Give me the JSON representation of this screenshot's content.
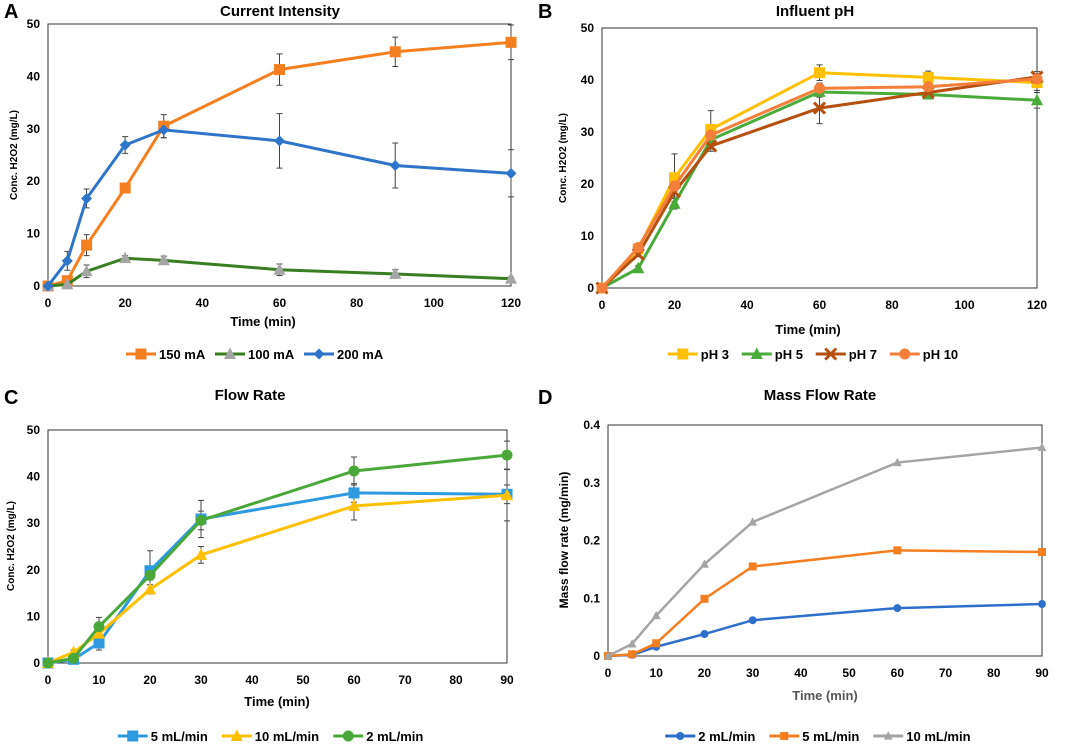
{
  "chart_data": [
    {
      "panel_label": "A",
      "type": "line",
      "title": "Current Intensity",
      "xlabel": "Time (min)",
      "ylabel": "Conc. H2O2 (mg/L)",
      "xlim": [
        0,
        120
      ],
      "ylim": [
        0,
        50
      ],
      "xticks": [
        0,
        20,
        40,
        60,
        80,
        100,
        120
      ],
      "yticks": [
        0,
        10,
        20,
        30,
        40,
        50
      ],
      "legend": "bottom",
      "x": [
        0,
        5,
        10,
        20,
        30,
        60,
        90,
        120
      ],
      "series": [
        {
          "name": "150 mA",
          "color": "#f47f20",
          "marker": "square",
          "values": [
            0,
            1,
            7.8,
            18.7,
            30.5,
            41.3,
            44.7,
            46.5
          ],
          "errors": [
            0,
            0.5,
            2,
            0,
            2.2,
            3,
            2.8,
            3.3
          ]
        },
        {
          "name": "100 mA",
          "color": "#3a7d22",
          "marker": "triangle",
          "marker_color": "#a5a5a5",
          "values": [
            0,
            0.3,
            2.8,
            5.3,
            4.9,
            3.1,
            2.3,
            1.4
          ],
          "errors": [
            0,
            0,
            1.2,
            0.5,
            0.8,
            1.1,
            0.8,
            0.3
          ]
        },
        {
          "name": "200 mA",
          "color": "#2e75c9",
          "marker": "diamond",
          "values": [
            0,
            4.8,
            16.7,
            26.9,
            29.8,
            27.7,
            23.0,
            21.5
          ],
          "errors": [
            0,
            1.8,
            1.8,
            1.6,
            1.5,
            5.2,
            4.3,
            4.5
          ]
        }
      ]
    },
    {
      "panel_label": "B",
      "type": "line",
      "title": "Influent pH",
      "xlabel": "Time (min)",
      "ylabel": "Conc. H2O2 (mg/L)",
      "xlim": [
        0,
        120
      ],
      "ylim": [
        0,
        50
      ],
      "xticks": [
        0,
        20,
        40,
        60,
        80,
        100,
        120
      ],
      "yticks": [
        0,
        10,
        20,
        30,
        40,
        50
      ],
      "legend": "bottom",
      "x": [
        0,
        10,
        20,
        30,
        60,
        90,
        120
      ],
      "series": [
        {
          "name": "pH 3",
          "color": "#ffc000",
          "marker": "square",
          "values": [
            0,
            7.5,
            21.2,
            30.5,
            41.4,
            40.5,
            39.5
          ],
          "errors": [
            0,
            0.5,
            4.6,
            3.6,
            1.5,
            1.2,
            1.5
          ]
        },
        {
          "name": "pH 5",
          "color": "#4aaa3a",
          "marker": "triangle",
          "values": [
            0,
            3.8,
            16.2,
            28.5,
            37.7,
            37.2,
            36.1
          ],
          "errors": [
            0,
            0.5,
            1,
            1,
            1,
            0.5,
            1.5
          ]
        },
        {
          "name": "pH 7",
          "color": "#b5500f",
          "marker": "x",
          "values": [
            0,
            6.5,
            18.5,
            27.3,
            34.6,
            37.6,
            40.6
          ],
          "errors": [
            0,
            0.5,
            1,
            1,
            3,
            0.5,
            1
          ]
        },
        {
          "name": "pH 10",
          "color": "#f47f3a",
          "marker": "circle",
          "values": [
            0,
            7.8,
            19.6,
            29.4,
            38.4,
            38.7,
            40.2
          ],
          "errors": [
            0,
            0.5,
            1,
            1,
            1,
            0.5,
            1
          ]
        }
      ]
    },
    {
      "panel_label": "C",
      "type": "line",
      "title": "Flow Rate",
      "xlabel": "Time (min)",
      "ylabel": "Conc. H2O2 (mg/L)",
      "xlim": [
        0,
        90
      ],
      "ylim": [
        0,
        50
      ],
      "xticks": [
        0,
        10,
        20,
        30,
        40,
        50,
        60,
        70,
        80,
        90
      ],
      "yticks": [
        0,
        10,
        20,
        30,
        40,
        50
      ],
      "legend": "bottom",
      "x": [
        0,
        5,
        10,
        20,
        30,
        60,
        90
      ],
      "series": [
        {
          "name": "5 mL/min",
          "color": "#2e9ae0",
          "marker": "square",
          "values": [
            0,
            0.8,
            4.3,
            19.8,
            30.9,
            36.5,
            36.2
          ],
          "errors": [
            0,
            0.5,
            1.5,
            4.3,
            4,
            2,
            2
          ]
        },
        {
          "name": "10 mL/min",
          "color": "#ffc000",
          "marker": "triangle",
          "values": [
            0,
            2.3,
            6.3,
            15.8,
            23.2,
            33.7,
            36
          ],
          "errors": [
            0,
            0.5,
            1,
            1,
            1.8,
            3,
            5.5
          ]
        },
        {
          "name": "2 mL/min",
          "color": "#4aa83a",
          "marker": "circle",
          "values": [
            0,
            1,
            7.8,
            18.8,
            30.6,
            41.2,
            44.6
          ],
          "errors": [
            0,
            0.5,
            2,
            1,
            2,
            3,
            3
          ]
        }
      ]
    },
    {
      "panel_label": "D",
      "type": "line",
      "title": "Mass Flow Rate",
      "xlabel": "Time (min)",
      "ylabel": "Mass flow rate (mg/min)",
      "xlim": [
        0,
        90
      ],
      "ylim": [
        0,
        0.4
      ],
      "xticks": [
        0,
        10,
        20,
        30,
        40,
        50,
        60,
        70,
        80,
        90
      ],
      "yticks": [
        0,
        0.1,
        0.2,
        0.3,
        0.4
      ],
      "legend": "bottom",
      "x": [
        0,
        5,
        10,
        20,
        30,
        60,
        90
      ],
      "series": [
        {
          "name": "2 mL/min",
          "color": "#2e6fc9",
          "marker": "circle",
          "values": [
            0,
            0.002,
            0.016,
            0.038,
            0.062,
            0.083,
            0.09
          ]
        },
        {
          "name": "5 mL/min",
          "color": "#f47f20",
          "marker": "square",
          "values": [
            0,
            0.003,
            0.022,
            0.099,
            0.155,
            0.183,
            0.18
          ]
        },
        {
          "name": "10 mL/min",
          "color": "#a5a5a5",
          "marker": "triangle",
          "values": [
            0,
            0.021,
            0.07,
            0.159,
            0.232,
            0.335,
            0.361
          ]
        }
      ]
    }
  ]
}
